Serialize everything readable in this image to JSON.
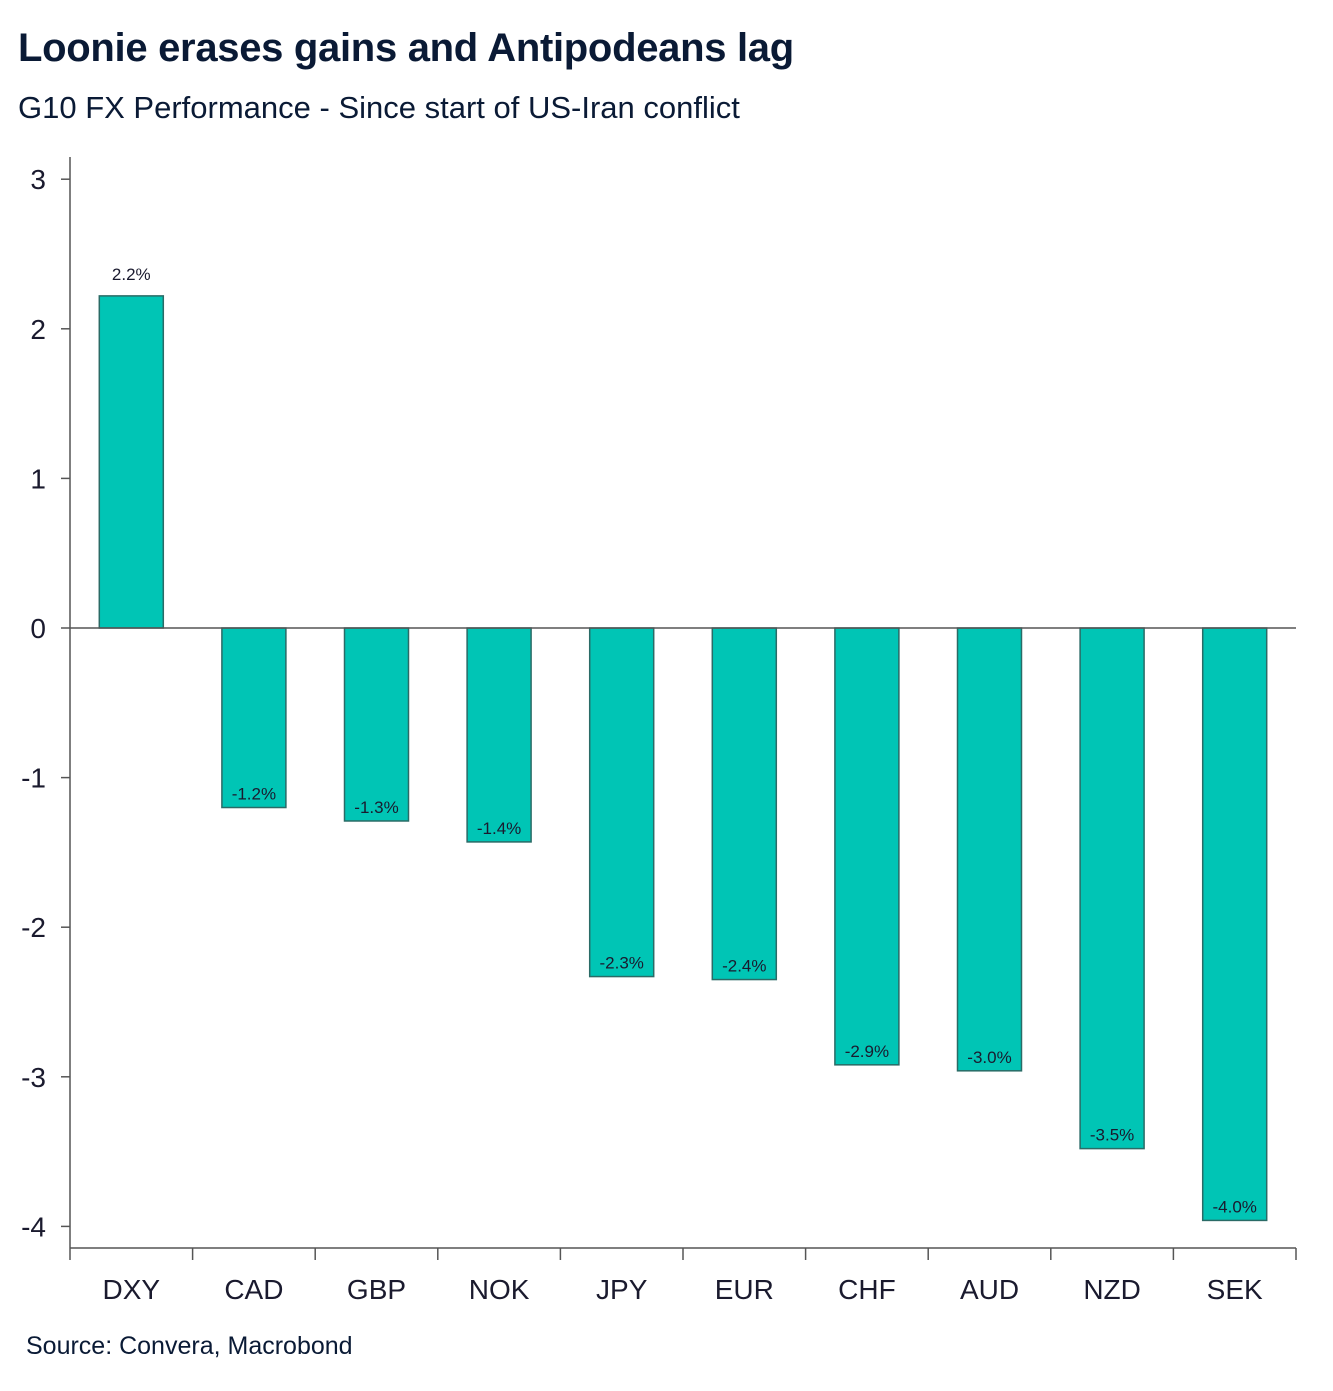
{
  "header": {
    "title": "Loonie erases gains and Antipodeans lag",
    "subtitle": "G10 FX Performance - Since start of US-Iran conflict"
  },
  "footer": {
    "source": "Source: Convera, Macrobond"
  },
  "chart_data": {
    "type": "bar",
    "categories": [
      "DXY",
      "CAD",
      "GBP",
      "NOK",
      "JPY",
      "EUR",
      "CHF",
      "AUD",
      "NZD",
      "SEK"
    ],
    "values": [
      2.22,
      -1.2,
      -1.29,
      -1.43,
      -2.33,
      -2.35,
      -2.92,
      -2.96,
      -3.48,
      -3.96
    ],
    "data_labels": [
      "2.2%",
      "-1.2%",
      "-1.3%",
      "-1.4%",
      "-2.3%",
      "-2.4%",
      "-2.9%",
      "-3.0%",
      "-3.5%",
      "-4.0%"
    ],
    "yticks": [
      3,
      2,
      1,
      0,
      -1,
      -2,
      -3,
      -4
    ],
    "ylim": [
      -4.15,
      3.15
    ],
    "grid": false,
    "bar_color": "#00c5b5",
    "bar_edge_color": "#2a6b66",
    "axis_color": "#555555"
  }
}
